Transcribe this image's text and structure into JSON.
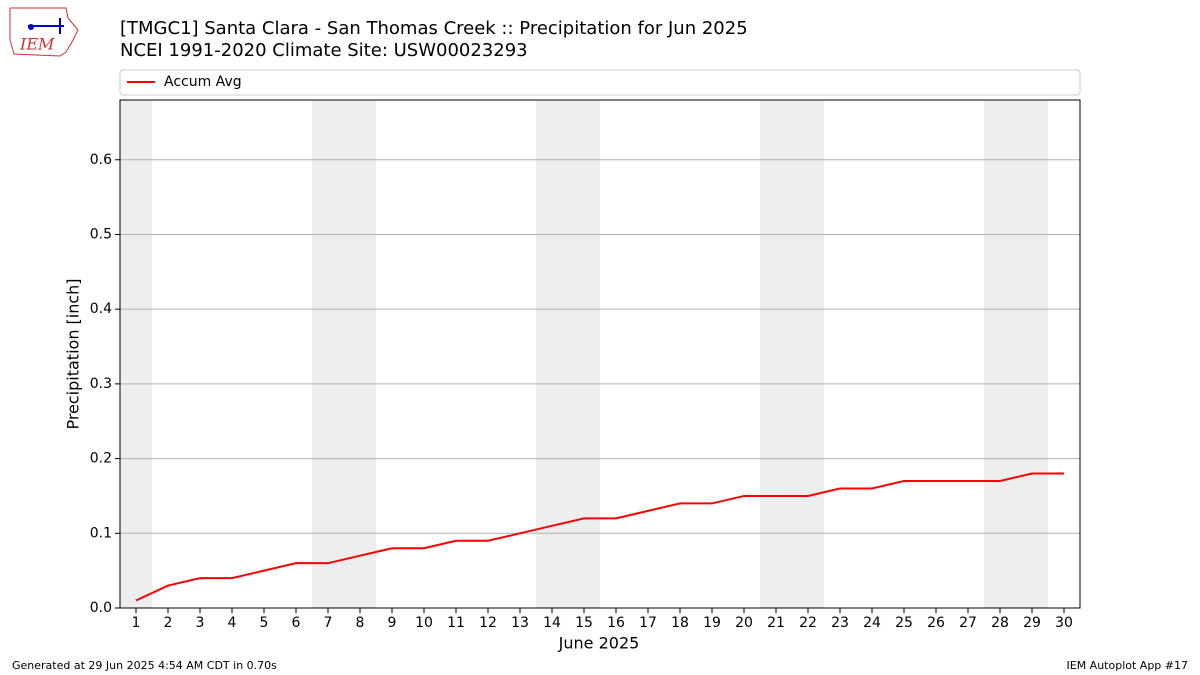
{
  "logo": "IEM",
  "chart_data": {
    "type": "line",
    "title": "[TMGC1] Santa Clara - San Thomas Creek :: Precipitation for Jun 2025",
    "subtitle": "NCEI 1991-2020 Climate Site: USW00023293",
    "x_label": "June 2025",
    "y_label": "Precipitation [inch]",
    "x": [
      1,
      2,
      3,
      4,
      5,
      6,
      7,
      8,
      9,
      10,
      11,
      12,
      13,
      14,
      15,
      16,
      17,
      18,
      19,
      20,
      21,
      22,
      23,
      24,
      25,
      26,
      27,
      28,
      29,
      30
    ],
    "series": [
      {
        "name": "Accum Avg",
        "color": "#ff0000",
        "values": [
          0.01,
          0.03,
          0.04,
          0.04,
          0.05,
          0.06,
          0.06,
          0.07,
          0.08,
          0.08,
          0.09,
          0.09,
          0.1,
          0.11,
          0.12,
          0.12,
          0.13,
          0.14,
          0.14,
          0.15,
          0.15,
          0.15,
          0.16,
          0.16,
          0.17,
          0.17,
          0.17,
          0.17,
          0.18,
          0.18
        ]
      }
    ],
    "xlim": [
      0.5,
      30.5
    ],
    "ylim": [
      0,
      0.68
    ],
    "xticks": [
      1,
      2,
      3,
      4,
      5,
      6,
      7,
      8,
      9,
      10,
      11,
      12,
      13,
      14,
      15,
      16,
      17,
      18,
      19,
      20,
      21,
      22,
      23,
      24,
      25,
      26,
      27,
      28,
      29,
      30
    ],
    "yticks": [
      {
        "value": 0,
        "label": "0.0"
      },
      0.1,
      0.2,
      0.3,
      0.4,
      0.5,
      0.6
    ],
    "grid": true,
    "legend": "top",
    "shaded_spans": [
      [
        0.5,
        1.5
      ],
      [
        6.5,
        8.5
      ],
      [
        13.5,
        15.5
      ],
      [
        20.5,
        22.5
      ],
      [
        27.5,
        29.5
      ]
    ],
    "shade_color": "#eeeeee"
  },
  "footer_left": "Generated at 29 Jun 2025 4:54 AM CDT in 0.70s",
  "footer_right": "IEM Autoplot App #17"
}
